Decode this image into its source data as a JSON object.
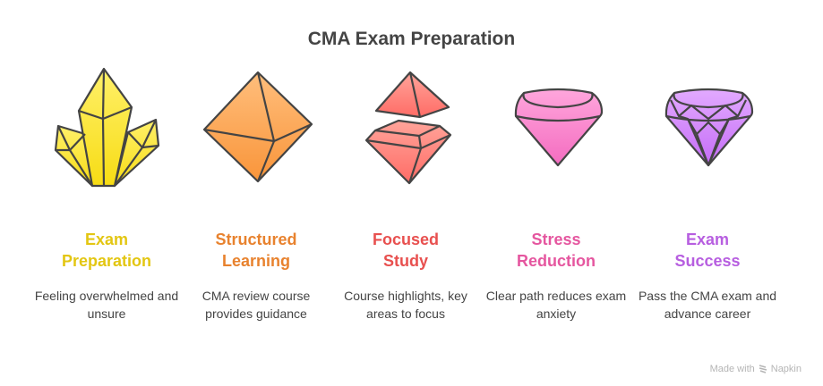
{
  "title": "CMA Exam Preparation",
  "steps": [
    {
      "title": "Exam Preparation",
      "description": "Feeling overwhelmed and unsure",
      "color": "#E3C612",
      "icon": "crystal-cluster-icon"
    },
    {
      "title": "Structured Learning",
      "description": "CMA review course provides guidance",
      "color": "#E8822E",
      "icon": "octahedron-icon"
    },
    {
      "title": "Focused Study",
      "description": "Course highlights, key areas to focus",
      "color": "#E8504F",
      "icon": "split-gem-icon"
    },
    {
      "title": "Stress Reduction",
      "description": "Clear path reduces exam anxiety",
      "color": "#E5569F",
      "icon": "pink-gem-icon"
    },
    {
      "title": "Exam Success",
      "description": "Pass the CMA exam and advance career",
      "color": "#B75EE0",
      "icon": "diamond-icon"
    }
  ],
  "branding": {
    "prefix": "Made with",
    "name": "Napkin"
  }
}
